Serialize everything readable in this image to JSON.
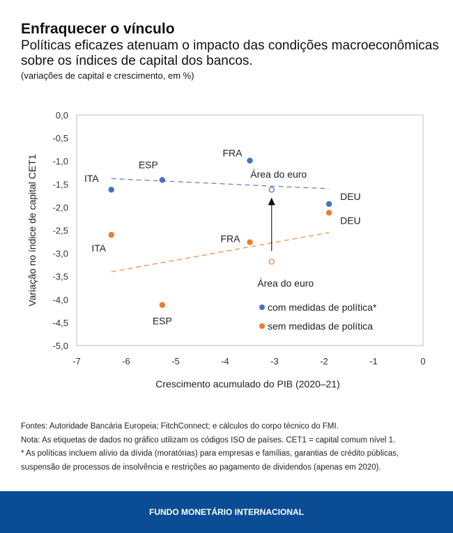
{
  "header": {
    "title": "Enfraquecer o vínculo",
    "subtitle": "Políticas eficazes atenuam o impacto das condições macroeconômicas sobre os índices de capital dos bancos.",
    "units": "(variações de capital e crescimento, em %)"
  },
  "chart_data": {
    "type": "scatter",
    "xlabel": "Crescimento acumulado do PIB (2020–21)",
    "ylabel": "Variação no índice de capital CET1",
    "xlim": [
      -7,
      0
    ],
    "ylim": [
      -5,
      0
    ],
    "xticks": [
      "-7",
      "-6",
      "-5",
      "-4",
      "-3",
      "-2",
      "-1",
      "0"
    ],
    "yticks": [
      "0,0",
      "-0,5",
      "-1,0",
      "-1,5",
      "-2,0",
      "-2,5",
      "-3,0",
      "-3,5",
      "-4,0",
      "-4,5",
      "-5,0"
    ],
    "grid": false,
    "legend_position": "bottom-right",
    "series": [
      {
        "name": "com medidas de política*",
        "color": "#4472c4",
        "points": [
          {
            "label": "ITA",
            "x": -6.3,
            "y": -1.62
          },
          {
            "label": "ESP",
            "x": -5.27,
            "y": -1.41
          },
          {
            "label": "FRA",
            "x": -3.5,
            "y": -0.99
          },
          {
            "label": "Área do euro",
            "x": -3.06,
            "y": -1.62,
            "hollow": true
          },
          {
            "label": "DEU",
            "x": -1.9,
            "y": -1.93
          }
        ],
        "trendline": [
          [
            -6.3,
            -1.38
          ],
          [
            -1.9,
            -1.6
          ]
        ]
      },
      {
        "name": "sem medidas de política",
        "color": "#ed7d31",
        "points": [
          {
            "label": "ITA",
            "x": -6.3,
            "y": -2.6
          },
          {
            "label": "ESP",
            "x": -5.27,
            "y": -4.12
          },
          {
            "label": "FRA",
            "x": -3.5,
            "y": -2.76
          },
          {
            "label": "Área do euro",
            "x": -3.06,
            "y": -3.18,
            "hollow": true
          },
          {
            "label": "DEU",
            "x": -1.9,
            "y": -2.12
          }
        ],
        "trendline": [
          [
            -6.3,
            -3.4
          ],
          [
            -1.9,
            -2.55
          ]
        ]
      }
    ],
    "annotation_arrow": {
      "from": [
        -3.06,
        -2.95
      ],
      "to": [
        -3.06,
        -1.85
      ]
    }
  },
  "notes": {
    "sources": "Fontes: Autoridade Bancária Europeia; FitchConnect; e cálculos do corpo técnico do FMI.",
    "note": "Nota: As etiquetas de dados no gráfico utilizam os códigos ISO de países. CET1 = capital comum nível 1.",
    "footnote": "* As políticas incluem alívio da dívida (moratórias) para empresas e famílias, garantias de crédito públicas, suspensão de processos de insolvência e restrições ao pagamento de dividendos (apenas em 2020)."
  },
  "footer": {
    "org": "FUNDO MONETÁRIO INTERNACIONAL"
  }
}
